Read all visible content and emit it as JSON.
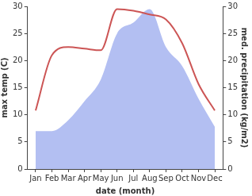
{
  "chart_data": {
    "type": "line",
    "categories": [
      "Jan",
      "Feb",
      "Mar",
      "Apr",
      "May",
      "Jun",
      "Jul",
      "Aug",
      "Sep",
      "Oct",
      "Nov",
      "Dec"
    ],
    "xlabel": "date (month)",
    "ylabel": "max temp (C)",
    "y2label": "med. precipitation (kg/m2)",
    "ylim": [
      0,
      30
    ],
    "yticks": [
      0,
      5,
      10,
      15,
      20,
      25,
      30
    ],
    "y2lim": [
      0,
      30
    ],
    "y2ticks": [
      0,
      5,
      10,
      15,
      20,
      25,
      30
    ],
    "grid": false,
    "series": [
      {
        "type": "area",
        "axis": "y2",
        "color": "#b3bff2",
        "values": [
          7,
          7,
          9,
          12.5,
          16.5,
          25,
          27,
          29.5,
          22.5,
          19,
          13,
          7.8
        ]
      },
      {
        "type": "line",
        "color": "#cc5555",
        "values": [
          10.8,
          21,
          22.5,
          22.2,
          21.9,
          29.5,
          29.2,
          28.5,
          27.6,
          23.2,
          15.7,
          10.8
        ]
      }
    ]
  }
}
